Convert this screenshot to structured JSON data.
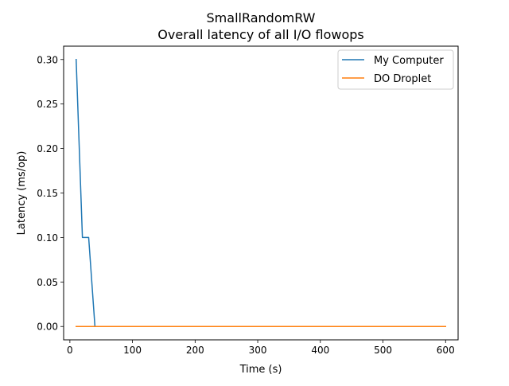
{
  "chart_data": {
    "type": "line",
    "title": "SmallRandomRW",
    "subtitle": "Overall latency of all I/O flowops",
    "xlabel": "Time (s)",
    "ylabel": "Latency (ms/op)",
    "xlim": [
      -10,
      620
    ],
    "ylim": [
      -0.015,
      0.315
    ],
    "xticks": [
      0,
      100,
      200,
      300,
      400,
      500,
      600
    ],
    "xtick_labels": [
      "0",
      "100",
      "200",
      "300",
      "400",
      "500",
      "600"
    ],
    "yticks": [
      0.0,
      0.05,
      0.1,
      0.15,
      0.2,
      0.25,
      0.3
    ],
    "ytick_labels": [
      "0.00",
      "0.05",
      "0.10",
      "0.15",
      "0.20",
      "0.25",
      "0.30"
    ],
    "grid": false,
    "legend_position": "top-right",
    "series": [
      {
        "name": "My Computer",
        "color": "#1f77b4",
        "x": [
          10,
          20,
          30,
          40,
          50,
          100,
          200,
          300,
          400,
          500,
          600
        ],
        "y": [
          0.3,
          0.1,
          0.1,
          0.0,
          0.0,
          0.0,
          0.0,
          0.0,
          0.0,
          0.0,
          0.0
        ]
      },
      {
        "name": "DO Droplet",
        "color": "#ff7f0e",
        "x": [
          10,
          20,
          30,
          40,
          50,
          100,
          200,
          300,
          400,
          500,
          600
        ],
        "y": [
          0.0,
          0.0,
          0.0,
          0.0,
          0.0,
          0.0,
          0.0,
          0.0,
          0.0,
          0.0,
          0.0
        ]
      }
    ]
  }
}
